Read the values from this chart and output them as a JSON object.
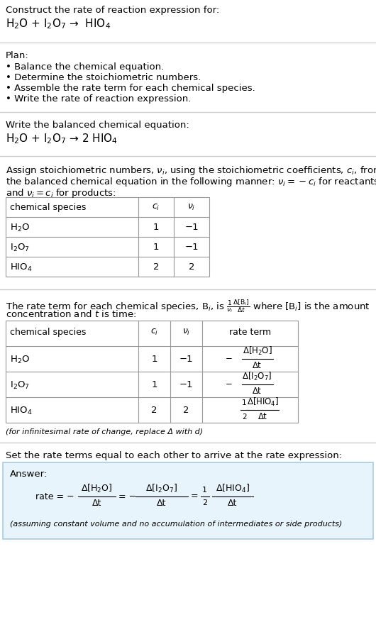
{
  "title_line1": "Construct the rate of reaction expression for:",
  "title_line2": "H$_2$O + I$_2$O$_7$ →  HIO$_4$",
  "plan_header": "Plan:",
  "plan_items": [
    "• Balance the chemical equation.",
    "• Determine the stoichiometric numbers.",
    "• Assemble the rate term for each chemical species.",
    "• Write the rate of reaction expression."
  ],
  "balanced_header": "Write the balanced chemical equation:",
  "balanced_eq": "H$_2$O + I$_2$O$_7$ → 2 HIO$_4$",
  "stoich_intro1": "Assign stoichiometric numbers, $\\nu_i$, using the stoichiometric coefficients, $c_i$, from",
  "stoich_intro2": "the balanced chemical equation in the following manner: $\\nu_i = -c_i$ for reactants",
  "stoich_intro3": "and $\\nu_i = c_i$ for products:",
  "table1_headers": [
    "chemical species",
    "$c_i$",
    "$\\nu_i$"
  ],
  "table1_rows": [
    [
      "H$_2$O",
      "1",
      "−1"
    ],
    [
      "I$_2$O$_7$",
      "1",
      "−1"
    ],
    [
      "HIO$_4$",
      "2",
      "2"
    ]
  ],
  "rate_intro1": "The rate term for each chemical species, B$_i$, is $\\frac{1}{\\nu_i}\\frac{\\Delta[\\mathrm{B}_i]}{\\Delta t}$ where [B$_i$] is the amount",
  "rate_intro2": "concentration and $t$ is time:",
  "table2_headers": [
    "chemical species",
    "$c_i$",
    "$\\nu_i$",
    "rate term"
  ],
  "table2_row0_species": "H$_2$O",
  "table2_row0_ci": "1",
  "table2_row0_nu": "−1",
  "table2_row0_rate_neg": "−",
  "table2_row0_rate_num": "Δ[H$_2$O]",
  "table2_row0_rate_den": "Δt",
  "table2_row1_species": "I$_2$O$_7$",
  "table2_row1_ci": "1",
  "table2_row1_nu": "−1",
  "table2_row1_rate_neg": "−",
  "table2_row1_rate_num": "Δ[I$_2$O$_7$]",
  "table2_row1_rate_den": "Δt",
  "table2_row2_species": "HIO$_4$",
  "table2_row2_ci": "2",
  "table2_row2_nu": "2",
  "table2_row2_rate_pre_num": "1",
  "table2_row2_rate_pre_den": "2",
  "table2_row2_rate_num": "Δ[HIO$_4$]",
  "table2_row2_rate_den": "Δt",
  "infinitesimal_note": "(for infinitesimal rate of change, replace Δ with d)",
  "set_rate_text": "Set the rate terms equal to each other to arrive at the rate expression:",
  "answer_label": "Answer:",
  "ans_rate_pre": "rate = −",
  "ans_num1": "Δ[H$_2$O]",
  "ans_den1": "Δt",
  "ans_eq2_pre": "= −",
  "ans_num2": "Δ[I$_2$O$_7$]",
  "ans_den2": "Δt",
  "ans_eq3_pre": "=",
  "ans_frac_num": "1",
  "ans_frac_den": "2",
  "ans_num3": "Δ[HIO$_4$]",
  "ans_den3": "Δt",
  "assumption_note": "(assuming constant volume and no accumulation of intermediates or side products)",
  "bg_color": "#ffffff",
  "answer_box_color": "#e8f4fb",
  "answer_box_border": "#a8cce0",
  "text_color": "#000000",
  "table_border_color": "#999999",
  "separator_color": "#cccccc"
}
